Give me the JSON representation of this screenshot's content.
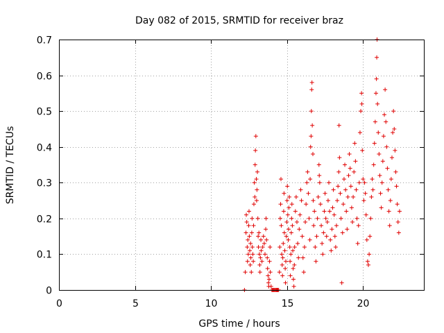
{
  "chart_data": {
    "type": "scatter",
    "title": "Day 082 of 2015, SRMTID for receiver braz",
    "xlabel": "GPS time / hours",
    "ylabel": "SRMTID / TECUs",
    "xlim": [
      0,
      24
    ],
    "ylim": [
      0,
      0.7
    ],
    "xticks": [
      0,
      5,
      10,
      15,
      20
    ],
    "yticks": [
      0,
      0.1,
      0.2,
      0.3,
      0.4,
      0.5,
      0.6,
      0.7
    ],
    "xtick_labels": [
      "0",
      "5",
      "10",
      "15",
      "20"
    ],
    "ytick_labels": [
      "0",
      "0.1",
      "0.2",
      "0.3",
      "0.4",
      "0.5",
      "0.6",
      "0.7"
    ],
    "grid": true,
    "marker": "+",
    "color": "#e00000",
    "series": [
      {
        "name": "SRMTID",
        "points": [
          [
            12.2,
            0.0
          ],
          [
            12.25,
            0.05
          ],
          [
            12.3,
            0.16
          ],
          [
            12.32,
            0.21
          ],
          [
            12.35,
            0.19
          ],
          [
            12.38,
            0.12
          ],
          [
            12.4,
            0.08
          ],
          [
            12.42,
            0.14
          ],
          [
            12.45,
            0.1
          ],
          [
            12.48,
            0.18
          ],
          [
            12.5,
            0.22
          ],
          [
            12.52,
            0.15
          ],
          [
            12.55,
            0.11
          ],
          [
            12.58,
            0.07
          ],
          [
            12.6,
            0.13
          ],
          [
            12.62,
            0.09
          ],
          [
            12.65,
            0.05
          ],
          [
            12.68,
            0.16
          ],
          [
            12.7,
            0.2
          ],
          [
            12.72,
            0.12
          ],
          [
            12.75,
            0.1
          ],
          [
            12.78,
            0.08
          ],
          [
            12.8,
            0.18
          ],
          [
            12.82,
            0.24
          ],
          [
            12.85,
            0.3
          ],
          [
            12.88,
            0.26
          ],
          [
            12.9,
            0.35
          ],
          [
            12.92,
            0.39
          ],
          [
            12.95,
            0.43
          ],
          [
            12.98,
            0.31
          ],
          [
            13.0,
            0.25
          ],
          [
            13.02,
            0.28
          ],
          [
            13.05,
            0.33
          ],
          [
            13.08,
            0.2
          ],
          [
            13.1,
            0.15
          ],
          [
            13.12,
            0.12
          ],
          [
            13.15,
            0.16
          ],
          [
            13.18,
            0.1
          ],
          [
            13.2,
            0.07
          ],
          [
            13.22,
            0.05
          ],
          [
            13.25,
            0.09
          ],
          [
            13.28,
            0.14
          ],
          [
            13.3,
            0.11
          ],
          [
            13.35,
            0.08
          ],
          [
            13.4,
            0.12
          ],
          [
            13.45,
            0.15
          ],
          [
            13.5,
            0.13
          ],
          [
            13.55,
            0.1
          ],
          [
            13.6,
            0.17
          ],
          [
            13.62,
            0.2
          ],
          [
            13.65,
            0.14
          ],
          [
            13.7,
            0.09
          ],
          [
            13.72,
            0.06
          ],
          [
            13.75,
            0.04
          ],
          [
            13.78,
            0.02
          ],
          [
            13.8,
            0.01
          ],
          [
            13.82,
            0.03
          ],
          [
            13.85,
            0.08
          ],
          [
            13.88,
            0.12
          ],
          [
            13.9,
            0.05
          ],
          [
            13.95,
            0.01
          ],
          [
            14.0,
            0.0
          ],
          [
            14.05,
            0.0
          ],
          [
            14.1,
            0.0
          ],
          [
            14.15,
            0.0
          ],
          [
            14.2,
            0.0
          ],
          [
            14.25,
            0.0
          ],
          [
            14.3,
            0.0
          ],
          [
            14.35,
            0.0
          ],
          [
            14.4,
            0.0
          ],
          [
            14.45,
            0.0
          ],
          [
            14.5,
            0.05
          ],
          [
            14.52,
            0.12
          ],
          [
            14.55,
            0.2
          ],
          [
            14.58,
            0.24
          ],
          [
            14.6,
            0.31
          ],
          [
            14.62,
            0.18
          ],
          [
            14.65,
            0.1
          ],
          [
            14.68,
            0.07
          ],
          [
            14.7,
            0.04
          ],
          [
            14.72,
            0.09
          ],
          [
            14.75,
            0.13
          ],
          [
            14.78,
            0.22
          ],
          [
            14.8,
            0.27
          ],
          [
            14.82,
            0.16
          ],
          [
            14.85,
            0.11
          ],
          [
            14.88,
            0.06
          ],
          [
            14.9,
            0.02
          ],
          [
            14.92,
            0.08
          ],
          [
            14.95,
            0.15
          ],
          [
            14.98,
            0.19
          ],
          [
            15.0,
            0.25
          ],
          [
            15.02,
            0.29
          ],
          [
            15.05,
            0.21
          ],
          [
            15.08,
            0.14
          ],
          [
            15.1,
            0.17
          ],
          [
            15.12,
            0.23
          ],
          [
            15.15,
            0.26
          ],
          [
            15.18,
            0.12
          ],
          [
            15.2,
            0.08
          ],
          [
            15.22,
            0.04
          ],
          [
            15.25,
            0.1
          ],
          [
            15.28,
            0.16
          ],
          [
            15.3,
            0.2
          ],
          [
            15.32,
            0.24
          ],
          [
            15.35,
            0.18
          ],
          [
            15.38,
            0.11
          ],
          [
            15.4,
            0.06
          ],
          [
            15.42,
            0.03
          ],
          [
            15.45,
            0.01
          ],
          [
            15.48,
            0.07
          ],
          [
            15.5,
            0.12
          ],
          [
            15.55,
            0.22
          ],
          [
            15.6,
            0.26
          ],
          [
            15.65,
            0.19
          ],
          [
            15.7,
            0.13
          ],
          [
            15.75,
            0.09
          ],
          [
            15.8,
            0.17
          ],
          [
            15.85,
            0.21
          ],
          [
            15.9,
            0.28
          ],
          [
            15.95,
            0.25
          ],
          [
            16.0,
            0.15
          ],
          [
            16.05,
            0.09
          ],
          [
            16.1,
            0.05
          ],
          [
            16.15,
            0.12
          ],
          [
            16.2,
            0.19
          ],
          [
            16.25,
            0.24
          ],
          [
            16.3,
            0.3
          ],
          [
            16.35,
            0.33
          ],
          [
            16.4,
            0.27
          ],
          [
            16.45,
            0.2
          ],
          [
            16.5,
            0.14
          ],
          [
            16.52,
            0.31
          ],
          [
            16.55,
            0.4
          ],
          [
            16.58,
            0.43
          ],
          [
            16.6,
            0.5
          ],
          [
            16.62,
            0.56
          ],
          [
            16.64,
            0.58
          ],
          [
            16.66,
            0.46
          ],
          [
            16.7,
            0.38
          ],
          [
            16.72,
            0.25
          ],
          [
            16.75,
            0.18
          ],
          [
            16.8,
            0.22
          ],
          [
            16.85,
            0.12
          ],
          [
            16.9,
            0.08
          ],
          [
            16.95,
            0.15
          ],
          [
            17.0,
            0.2
          ],
          [
            17.05,
            0.26
          ],
          [
            17.1,
            0.35
          ],
          [
            17.12,
            0.32
          ],
          [
            17.15,
            0.3
          ],
          [
            17.2,
            0.24
          ],
          [
            17.25,
            0.18
          ],
          [
            17.3,
            0.13
          ],
          [
            17.35,
            0.1
          ],
          [
            17.4,
            0.16
          ],
          [
            17.45,
            0.22
          ],
          [
            17.5,
            0.27
          ],
          [
            17.55,
            0.2
          ],
          [
            17.6,
            0.15
          ],
          [
            17.65,
            0.19
          ],
          [
            17.7,
            0.25
          ],
          [
            17.75,
            0.3
          ],
          [
            17.8,
            0.22
          ],
          [
            17.85,
            0.14
          ],
          [
            17.9,
            0.11
          ],
          [
            17.95,
            0.17
          ],
          [
            18.0,
            0.23
          ],
          [
            18.05,
            0.28
          ],
          [
            18.1,
            0.21
          ],
          [
            18.15,
            0.15
          ],
          [
            18.2,
            0.12
          ],
          [
            18.25,
            0.18
          ],
          [
            18.3,
            0.25
          ],
          [
            18.35,
            0.29
          ],
          [
            18.4,
            0.33
          ],
          [
            18.42,
            0.46
          ],
          [
            18.45,
            0.37
          ],
          [
            18.5,
            0.27
          ],
          [
            18.55,
            0.2
          ],
          [
            18.6,
            0.02
          ],
          [
            18.65,
            0.16
          ],
          [
            18.7,
            0.24
          ],
          [
            18.75,
            0.31
          ],
          [
            18.8,
            0.35
          ],
          [
            18.85,
            0.28
          ],
          [
            18.9,
            0.22
          ],
          [
            18.95,
            0.17
          ],
          [
            19.0,
            0.26
          ],
          [
            19.05,
            0.32
          ],
          [
            19.1,
            0.38
          ],
          [
            19.15,
            0.34
          ],
          [
            19.2,
            0.29
          ],
          [
            19.25,
            0.23
          ],
          [
            19.3,
            0.19
          ],
          [
            19.35,
            0.26
          ],
          [
            19.4,
            0.33
          ],
          [
            19.45,
            0.41
          ],
          [
            19.5,
            0.36
          ],
          [
            19.55,
            0.28
          ],
          [
            19.6,
            0.2
          ],
          [
            19.65,
            0.13
          ],
          [
            19.7,
            0.18
          ],
          [
            19.75,
            0.3
          ],
          [
            19.8,
            0.44
          ],
          [
            19.85,
            0.5
          ],
          [
            19.9,
            0.55
          ],
          [
            19.92,
            0.52
          ],
          [
            19.95,
            0.39
          ],
          [
            20.0,
            0.31
          ],
          [
            20.05,
            0.25
          ],
          [
            20.1,
            0.3
          ],
          [
            20.15,
            0.27
          ],
          [
            20.2,
            0.21
          ],
          [
            20.25,
            0.14
          ],
          [
            20.3,
            0.08
          ],
          [
            20.35,
            0.07
          ],
          [
            20.4,
            0.1
          ],
          [
            20.45,
            0.15
          ],
          [
            20.5,
            0.2
          ],
          [
            20.55,
            0.26
          ],
          [
            20.6,
            0.31
          ],
          [
            20.65,
            0.28
          ],
          [
            20.7,
            0.35
          ],
          [
            20.75,
            0.41
          ],
          [
            20.8,
            0.47
          ],
          [
            20.85,
            0.55
          ],
          [
            20.88,
            0.59
          ],
          [
            20.9,
            0.65
          ],
          [
            20.92,
            0.7
          ],
          [
            20.95,
            0.52
          ],
          [
            21.0,
            0.44
          ],
          [
            21.05,
            0.38
          ],
          [
            21.1,
            0.32
          ],
          [
            21.15,
            0.27
          ],
          [
            21.2,
            0.23
          ],
          [
            21.25,
            0.3
          ],
          [
            21.3,
            0.36
          ],
          [
            21.35,
            0.43
          ],
          [
            21.4,
            0.49
          ],
          [
            21.45,
            0.56
          ],
          [
            21.5,
            0.47
          ],
          [
            21.55,
            0.4
          ],
          [
            21.6,
            0.34
          ],
          [
            21.65,
            0.28
          ],
          [
            21.7,
            0.22
          ],
          [
            21.75,
            0.18
          ],
          [
            21.8,
            0.25
          ],
          [
            21.85,
            0.31
          ],
          [
            21.9,
            0.37
          ],
          [
            21.95,
            0.44
          ],
          [
            22.0,
            0.5
          ],
          [
            22.05,
            0.45
          ],
          [
            22.1,
            0.39
          ],
          [
            22.15,
            0.33
          ],
          [
            22.2,
            0.29
          ],
          [
            22.25,
            0.24
          ],
          [
            22.3,
            0.19
          ],
          [
            22.35,
            0.16
          ],
          [
            22.4,
            0.22
          ]
        ]
      }
    ]
  }
}
